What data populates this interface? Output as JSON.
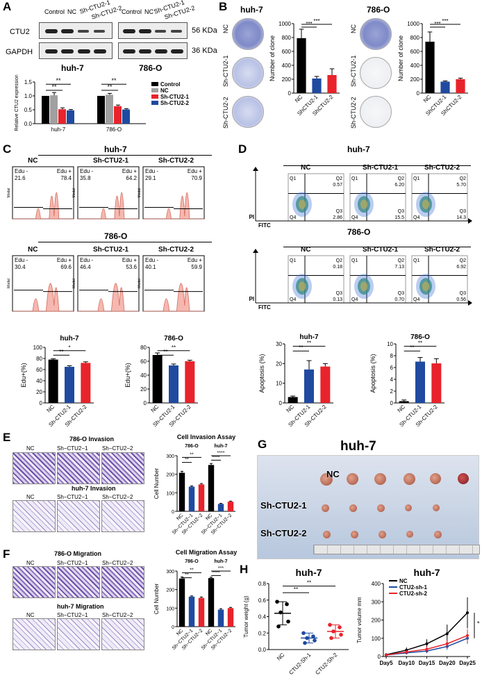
{
  "panels": {
    "a": "A",
    "b": "B",
    "c": "C",
    "d": "D",
    "e": "E",
    "f": "F",
    "g": "G",
    "h": "H"
  },
  "a": {
    "lanes": [
      "Control",
      "NC",
      "Sh-CTU2-1",
      "Sh-CTU2-2",
      "Control",
      "NC",
      "Sh-CTU2-1",
      "Sh-CTU2-2"
    ],
    "rows": [
      {
        "name": "CTU2",
        "size": "56 KDa"
      },
      {
        "name": "GAPDH",
        "size": "36 KDa"
      }
    ],
    "cells": [
      "huh-7",
      "786-O"
    ],
    "chart_data": {
      "type": "bar",
      "ylabel": "Relative CTU2 expression",
      "categories": [
        "huh-7",
        "786-O"
      ],
      "ylim": [
        0,
        1.5
      ],
      "yticks": [
        "0.0",
        "0.5",
        "1.0",
        "1.5"
      ],
      "series": [
        {
          "name": "Control",
          "color": "#000000",
          "values": [
            1.0,
            1.0
          ],
          "err": [
            0,
            0
          ]
        },
        {
          "name": "NC",
          "color": "#a0a0a0",
          "values": [
            1.02,
            1.04
          ],
          "err": [
            0.1,
            0.05
          ]
        },
        {
          "name": "Sh-CTU2-1",
          "color": "#e8232b",
          "values": [
            0.52,
            0.63
          ],
          "err": [
            0.05,
            0.04
          ]
        },
        {
          "name": "Sh-CTU2-2",
          "color": "#1f4aa0",
          "values": [
            0.48,
            0.51
          ],
          "err": [
            0.03,
            0.03
          ]
        }
      ],
      "sig": [
        "**",
        "**",
        "**",
        "**"
      ]
    }
  },
  "b": {
    "titles": [
      "huh-7",
      "786-O"
    ],
    "rowlabels": [
      "NC",
      "Sh-CTU2-1",
      "Sh-CTU2-2"
    ],
    "chart_data": [
      {
        "type": "bar",
        "ylabel": "Number of clone",
        "categories": [
          "NC",
          "ShCTU2-1",
          "ShCTU2-2"
        ],
        "values": [
          790,
          210,
          260
        ],
        "err": [
          130,
          30,
          90
        ],
        "ylim": [
          0,
          1000
        ],
        "yticks": [
          "0",
          "200",
          "400",
          "600",
          "800",
          "1000"
        ],
        "colors": [
          "#000000",
          "#1f4aa0",
          "#e8232b"
        ],
        "sig": [
          "***",
          "***"
        ]
      },
      {
        "type": "bar",
        "ylabel": "Number of clone",
        "categories": [
          "NC",
          "ShCTU2-1",
          "ShCTU2-2"
        ],
        "values": [
          740,
          165,
          200
        ],
        "err": [
          140,
          10,
          15
        ],
        "ylim": [
          0,
          1000
        ],
        "yticks": [
          "0",
          "200",
          "400",
          "600",
          "800",
          "1000"
        ],
        "colors": [
          "#000000",
          "#1f4aa0",
          "#e8232b"
        ],
        "sig": [
          "***",
          "***"
        ]
      }
    ]
  },
  "c": {
    "huh": {
      "title": "huh-7",
      "groups": [
        {
          "name": "NC",
          "neg": "21.6",
          "pos": "78.4"
        },
        {
          "name": "Sh-CTU2-1",
          "neg": "35.8",
          "pos": "64.2"
        },
        {
          "name": "Sh-CTU2-2",
          "neg": "29.1",
          "pos": "70.9"
        }
      ]
    },
    "o786": {
      "title": "786-O",
      "groups": [
        {
          "name": "NC",
          "neg": "30.4",
          "pos": "69.6"
        },
        {
          "name": "Sh-CTU2-1",
          "neg": "46.4",
          "pos": "53.6"
        },
        {
          "name": "Sh-CTU2-2",
          "neg": "40.1",
          "pos": "59.9"
        }
      ]
    },
    "neg_label": "Edu -",
    "pos_label": "Edu +",
    "ylabel": "Modal",
    "chart_data": [
      {
        "type": "bar",
        "title": "huh-7",
        "ylabel": "Edu+(%)",
        "categories": [
          "NC",
          "Sh-CTU2-1",
          "Sh-CTU2-2"
        ],
        "values": [
          78,
          65,
          72
        ],
        "err": [
          1.5,
          2,
          2
        ],
        "ylim": [
          0,
          100
        ],
        "yticks": [
          "0",
          "20",
          "40",
          "60",
          "80",
          "100"
        ],
        "colors": [
          "#000000",
          "#1f4aa0",
          "#e8232b"
        ],
        "sig": [
          "**",
          "*"
        ]
      },
      {
        "type": "bar",
        "title": "786-O",
        "ylabel": "Edu+(%)",
        "categories": [
          "NC",
          "Sh-CTU2-1",
          "Sh-CTU2-2"
        ],
        "values": [
          69,
          54,
          60
        ],
        "err": [
          3,
          2,
          1.5
        ],
        "ylim": [
          0,
          80
        ],
        "yticks": [
          "0",
          "20",
          "40",
          "60",
          "80"
        ],
        "colors": [
          "#000000",
          "#1f4aa0",
          "#e8232b"
        ],
        "sig": [
          "**",
          "**"
        ]
      }
    ]
  },
  "d": {
    "huh": {
      "title": "huh-7",
      "groups": [
        {
          "name": "NC",
          "q2": "0.57",
          "q3": "2.86"
        },
        {
          "name": "Sh-CTU2-1",
          "q2": "6.20",
          "q3": "15.5"
        },
        {
          "name": "Sh-CTU2-2",
          "q2": "5.70",
          "q3": "14.3"
        }
      ]
    },
    "o786": {
      "title": "786-O",
      "groups": [
        {
          "name": "NC",
          "q2": "0.18",
          "q3": "0.13"
        },
        {
          "name": "Sh-CTU2-1",
          "q2": "7.13",
          "q3": "0.70"
        },
        {
          "name": "Sh-CTU2-2",
          "q2": "6.92",
          "q3": "0.56"
        }
      ]
    },
    "quads": [
      "Q1",
      "Q2",
      "Q3",
      "Q4"
    ],
    "xaxis": "FITC",
    "yaxis": "PI",
    "chart_data": [
      {
        "type": "bar",
        "title": "huh-7",
        "ylabel": "Apoptosis (%)",
        "categories": [
          "NC",
          "Sh-CTU2-1",
          "Sh-CTU2-2"
        ],
        "values": [
          3,
          17,
          18.5
        ],
        "err": [
          0.5,
          4.5,
          1.5
        ],
        "ylim": [
          0,
          30
        ],
        "yticks": [
          "0",
          "10",
          "20",
          "30"
        ],
        "colors": [
          "#000000",
          "#1f4aa0",
          "#e8232b"
        ],
        "sig": [
          "**",
          "**"
        ]
      },
      {
        "type": "bar",
        "title": "786-O",
        "ylabel": "Apoptosis (%)",
        "categories": [
          "NC",
          "Sh-CTU2-1",
          "Sh-CTU2-2"
        ],
        "values": [
          0.3,
          7,
          6.7
        ],
        "err": [
          0.2,
          0.7,
          0.8
        ],
        "ylim": [
          0,
          10
        ],
        "yticks": [
          "0",
          "2",
          "4",
          "6",
          "8",
          "10"
        ],
        "colors": [
          "#000000",
          "#1f4aa0",
          "#e8232b"
        ],
        "sig": [
          "**",
          "**"
        ]
      }
    ]
  },
  "e": {
    "title1": "786-O Invasion",
    "title2": "huh-7 Invasion",
    "cols": [
      "NC",
      "Sh−CTU2−1",
      "Sh−CTU2−2"
    ],
    "chart_data": {
      "type": "bar",
      "title": "Cell Invasion Assay",
      "ylabel": "Cell Number",
      "groups": [
        "786-O",
        "huh-7"
      ],
      "categories": [
        "NC",
        "Sh−CTU2−1",
        "Sh−CTU2−2",
        "NC",
        "Sh−CTU2−1",
        "Sh−CTU2−2"
      ],
      "values": [
        208,
        133,
        145,
        250,
        40,
        52
      ],
      "err": [
        8,
        4,
        5,
        8,
        3,
        3
      ],
      "ylim": [
        0,
        300
      ],
      "yticks": [
        "0",
        "100",
        "200",
        "300"
      ],
      "colors": [
        "#000000",
        "#1f4aa0",
        "#e8232b",
        "#000000",
        "#1f4aa0",
        "#e8232b"
      ],
      "sig": [
        "**",
        "**",
        "****",
        "****"
      ]
    }
  },
  "f": {
    "title1": "786-O Migration",
    "title2": "huh-7 Migration",
    "cols": [
      "NC",
      "Sh−CTU2−1",
      "Sh−CTU2−2"
    ],
    "chart_data": {
      "type": "bar",
      "title": "Cell Migration Assay",
      "ylabel": "Cell Number",
      "groups": [
        "786-O",
        "huh-7"
      ],
      "categories": [
        "NC",
        "Sh−CTU2−1",
        "Sh−CTU2−2",
        "NC",
        "Sh−CTU2−1",
        "Sh−CTU2−2"
      ],
      "values": [
        260,
        162,
        155,
        262,
        92,
        100
      ],
      "err": [
        8,
        4,
        5,
        5,
        5,
        4
      ],
      "ylim": [
        0,
        300
      ],
      "yticks": [
        "0",
        "100",
        "200",
        "300"
      ],
      "colors": [
        "#000000",
        "#1f4aa0",
        "#e8232b",
        "#000000",
        "#1f4aa0",
        "#e8232b"
      ],
      "sig": [
        "**",
        "**",
        "****",
        "***"
      ]
    }
  },
  "g": {
    "title": "huh-7",
    "rows": [
      "NC",
      "Sh-CTU2-1",
      "Sh-CTU2-2"
    ]
  },
  "h": {
    "chart_data": [
      {
        "type": "scatter",
        "title": "huh-7",
        "ylabel": "Tumor weight (g)",
        "categories": [
          "NC",
          "CTU2-Sh-1",
          "CTU2-Sh-2"
        ],
        "means": [
          0.44,
          0.14,
          0.22
        ],
        "sd": [
          0.14,
          0.06,
          0.08
        ],
        "points": [
          [
            0.58,
            0.55,
            0.45,
            0.34,
            0.28
          ],
          [
            0.2,
            0.16,
            0.14,
            0.11,
            0.08
          ],
          [
            0.3,
            0.27,
            0.22,
            0.18,
            0.14
          ]
        ],
        "colors": [
          "#000000",
          "#1f4aa0",
          "#e8232b"
        ],
        "ylim": [
          0,
          0.8
        ],
        "yticks": [
          "0.0",
          "0.2",
          "0.4",
          "0.6",
          "0.8"
        ],
        "sig": [
          "**",
          "**"
        ]
      },
      {
        "type": "line",
        "title": "huh-7",
        "ylabel": "Tumor volume mm",
        "x": [
          "Day5",
          "Day10",
          "Day15",
          "Day20",
          "Day25"
        ],
        "ylim": [
          0,
          400
        ],
        "yticks": [
          "0",
          "100",
          "200",
          "300",
          "400"
        ],
        "series": [
          {
            "name": "NC",
            "color": "#000000",
            "values": [
              10,
              35,
              70,
              125,
              240
            ],
            "err": [
              5,
              15,
              25,
              50,
              85
            ]
          },
          {
            "name": "CTU2-sh-1",
            "color": "#1f4aa0",
            "values": [
              8,
              20,
              30,
              55,
              100
            ],
            "err": [
              4,
              8,
              12,
              18,
              30
            ]
          },
          {
            "name": "CTU2-sh-2",
            "color": "#e8232b",
            "values": [
              8,
              25,
              40,
              70,
              115
            ],
            "err": [
              4,
              10,
              14,
              22,
              35
            ]
          }
        ],
        "sig": [
          "*"
        ]
      }
    ]
  }
}
